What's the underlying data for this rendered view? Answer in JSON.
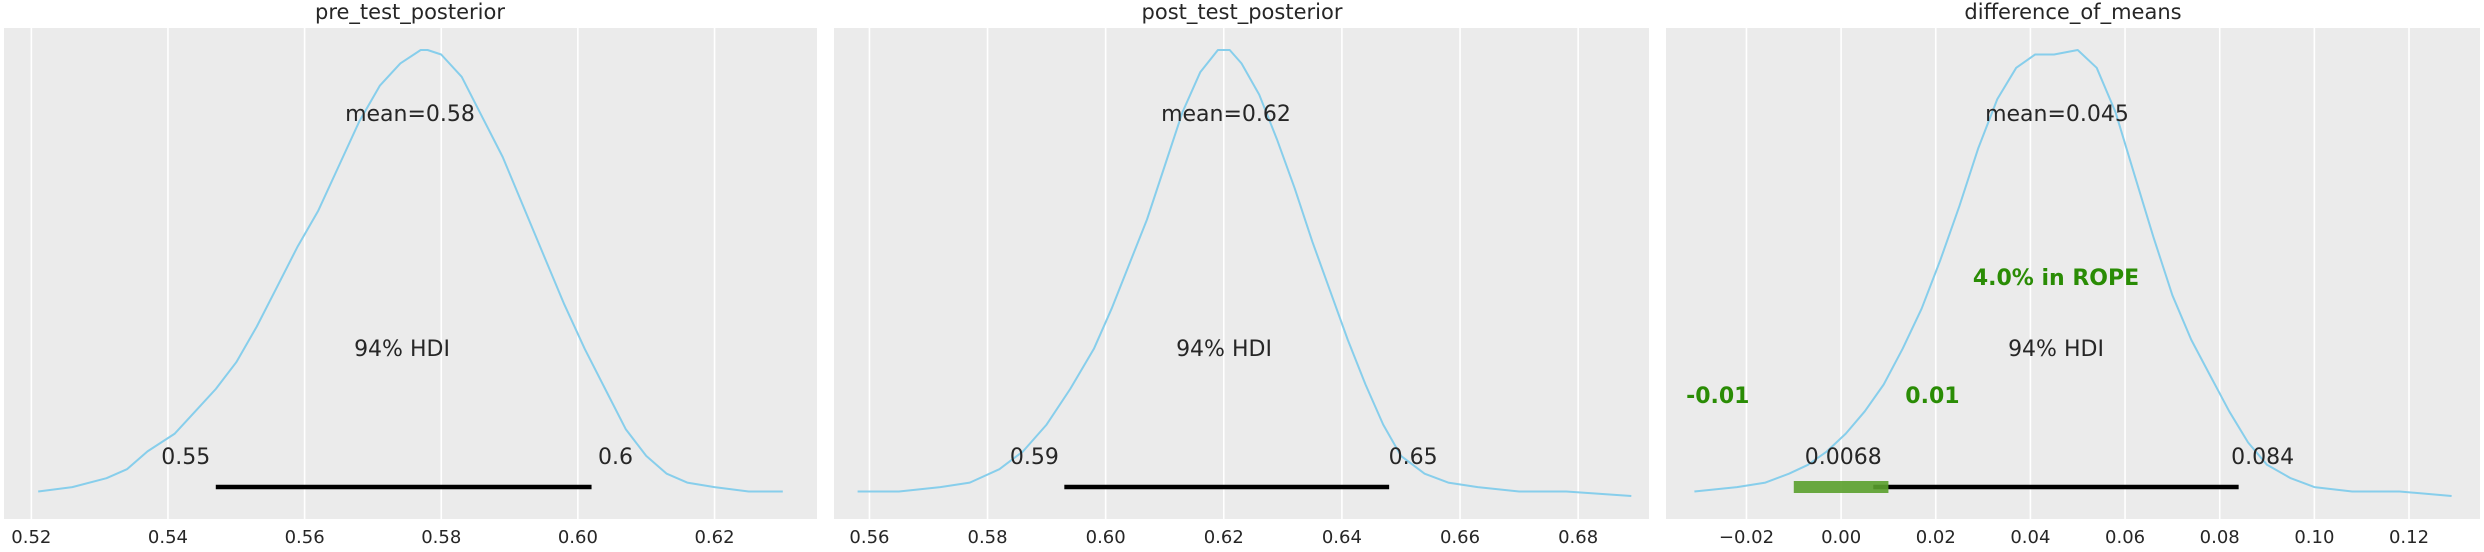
{
  "chart_data": [
    {
      "type": "area",
      "title": "pre_test_posterior",
      "xlim": [
        0.516,
        0.635
      ],
      "x_ticks": [
        "0.52",
        "0.54",
        "0.56",
        "0.58",
        "0.60",
        "0.62"
      ],
      "grid": true,
      "density": {
        "x": [
          0.521,
          0.526,
          0.531,
          0.534,
          0.537,
          0.541,
          0.544,
          0.547,
          0.55,
          0.553,
          0.556,
          0.559,
          0.562,
          0.565,
          0.568,
          0.571,
          0.574,
          0.577,
          0.578,
          0.58,
          0.583,
          0.586,
          0.589,
          0.592,
          0.595,
          0.598,
          0.601,
          0.604,
          0.607,
          0.61,
          0.613,
          0.616,
          0.62,
          0.625,
          0.63
        ],
        "y": [
          0.01,
          0.02,
          0.04,
          0.06,
          0.1,
          0.14,
          0.19,
          0.24,
          0.3,
          0.38,
          0.47,
          0.56,
          0.64,
          0.74,
          0.84,
          0.92,
          0.97,
          1.0,
          1.0,
          0.99,
          0.94,
          0.85,
          0.76,
          0.65,
          0.54,
          0.43,
          0.33,
          0.24,
          0.15,
          0.09,
          0.05,
          0.03,
          0.02,
          0.01,
          0.01
        ]
      },
      "mean_label": "mean=0.58",
      "hdi_label": "94% HDI",
      "hdi": [
        0.547,
        0.602
      ],
      "hdi_low_label": "0.55",
      "hdi_high_label": "0.6",
      "color": "#87ceeb"
    },
    {
      "type": "area",
      "title": "post_test_posterior",
      "xlim": [
        0.554,
        0.692
      ],
      "x_ticks": [
        "0.56",
        "0.58",
        "0.60",
        "0.62",
        "0.64",
        "0.66",
        "0.68"
      ],
      "grid": true,
      "density": {
        "x": [
          0.558,
          0.565,
          0.572,
          0.577,
          0.582,
          0.586,
          0.59,
          0.594,
          0.598,
          0.601,
          0.604,
          0.607,
          0.61,
          0.613,
          0.616,
          0.619,
          0.621,
          0.623,
          0.626,
          0.629,
          0.632,
          0.635,
          0.638,
          0.641,
          0.644,
          0.647,
          0.65,
          0.654,
          0.658,
          0.663,
          0.67,
          0.678,
          0.689
        ],
        "y": [
          0.01,
          0.01,
          0.02,
          0.03,
          0.06,
          0.1,
          0.16,
          0.24,
          0.33,
          0.42,
          0.52,
          0.62,
          0.74,
          0.86,
          0.95,
          1.0,
          1.0,
          0.97,
          0.9,
          0.8,
          0.69,
          0.57,
          0.46,
          0.35,
          0.25,
          0.16,
          0.09,
          0.05,
          0.03,
          0.02,
          0.01,
          0.01,
          0.0
        ]
      },
      "mean_label": "mean=0.62",
      "hdi_label": "94% HDI",
      "hdi": [
        0.593,
        0.648
      ],
      "hdi_low_label": "0.59",
      "hdi_high_label": "0.65",
      "color": "#87ceeb"
    },
    {
      "type": "area",
      "title": "difference_of_means",
      "xlim": [
        -0.037,
        0.135
      ],
      "x_ticks": [
        "−0.02",
        "0.00",
        "0.02",
        "0.04",
        "0.06",
        "0.08",
        "0.10",
        "0.12"
      ],
      "grid": true,
      "density": {
        "x": [
          -0.031,
          -0.022,
          -0.016,
          -0.011,
          -0.007,
          -0.003,
          0.001,
          0.005,
          0.009,
          0.013,
          0.017,
          0.021,
          0.025,
          0.029,
          0.033,
          0.037,
          0.041,
          0.045,
          0.05,
          0.054,
          0.058,
          0.062,
          0.066,
          0.07,
          0.074,
          0.078,
          0.082,
          0.086,
          0.09,
          0.095,
          0.1,
          0.108,
          0.118,
          0.129
        ],
        "y": [
          0.01,
          0.02,
          0.03,
          0.05,
          0.07,
          0.1,
          0.14,
          0.19,
          0.25,
          0.33,
          0.42,
          0.53,
          0.65,
          0.78,
          0.89,
          0.96,
          0.99,
          0.99,
          1.0,
          0.96,
          0.86,
          0.72,
          0.58,
          0.45,
          0.35,
          0.27,
          0.19,
          0.12,
          0.07,
          0.04,
          0.02,
          0.01,
          0.01,
          0.0
        ]
      },
      "mean_label": "mean=0.045",
      "hdi_label": "94% HDI",
      "hdi": [
        0.0068,
        0.084
      ],
      "hdi_low_label": "0.0068",
      "hdi_high_label": "0.084",
      "rope": [
        -0.01,
        0.01
      ],
      "rope_low_label": "-0.01",
      "rope_high_label": "0.01",
      "rope_label": "4.0% in ROPE",
      "rope_color": "#2a8c05",
      "color": "#87ceeb"
    }
  ],
  "colors": {
    "background": "#ebebeb",
    "grid": "#ffffff",
    "hdi_line": "#000000",
    "rope_bar": "#5aa02c"
  }
}
